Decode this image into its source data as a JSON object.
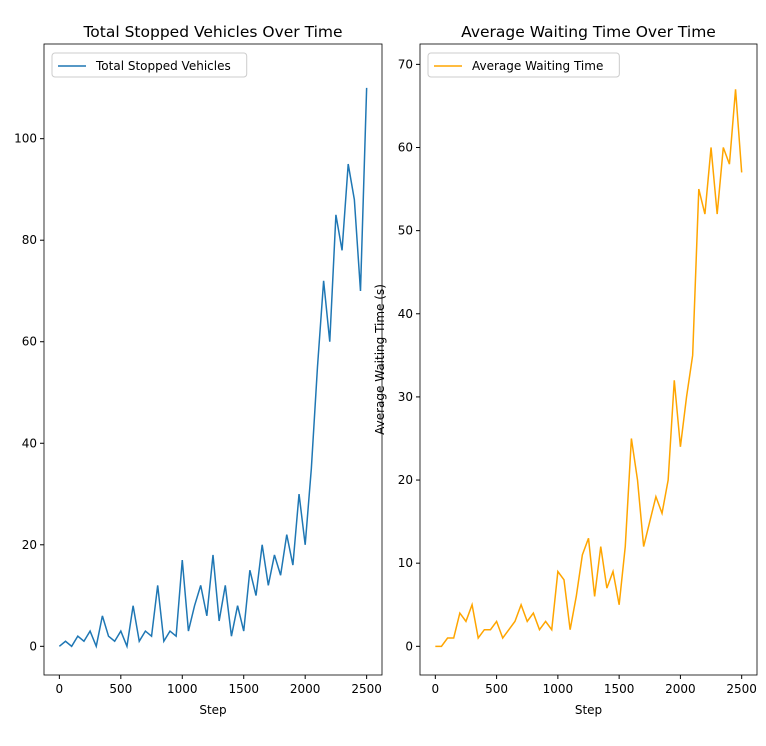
{
  "chart_data": [
    {
      "type": "line",
      "title": "Total Stopped Vehicles Over Time",
      "x_label": "Step",
      "x": [
        0,
        50,
        100,
        150,
        200,
        250,
        300,
        350,
        400,
        450,
        500,
        550,
        600,
        650,
        700,
        750,
        800,
        850,
        900,
        950,
        1000,
        1050,
        1100,
        1150,
        1200,
        1250,
        1300,
        1350,
        1400,
        1450,
        1500,
        1550,
        1600,
        1650,
        1700,
        1750,
        1800,
        1850,
        1900,
        1950,
        2000,
        2050,
        2100,
        2150,
        2200,
        2250,
        2300,
        2350,
        2400,
        2450,
        2500
      ],
      "series": [
        {
          "name": "Total Stopped Vehicles",
          "color": "#1f77b4",
          "values": [
            0,
            1,
            0,
            2,
            1,
            3,
            0,
            6,
            2,
            1,
            3,
            0,
            8,
            1,
            3,
            2,
            12,
            1,
            3,
            2,
            17,
            3,
            8,
            12,
            6,
            18,
            5,
            12,
            2,
            8,
            3,
            15,
            10,
            20,
            12,
            18,
            14,
            22,
            16,
            30,
            20,
            35,
            55,
            72,
            60,
            85,
            78,
            95,
            88,
            70,
            110
          ]
        }
      ],
      "xlim": [
        -125,
        2625
      ],
      "xticks": [
        0,
        500,
        1000,
        1500,
        2000,
        2500
      ],
      "ylim": [
        -5.65,
        118.65
      ],
      "yticks": [
        0,
        20,
        40,
        60,
        80,
        100
      ],
      "legend": "upper left"
    },
    {
      "type": "line",
      "title": "Average Waiting Time Over Time",
      "x_label": "Step",
      "y_label": "Average Waiting Time (s)",
      "x": [
        0,
        50,
        100,
        150,
        200,
        250,
        300,
        350,
        400,
        450,
        500,
        550,
        600,
        650,
        700,
        750,
        800,
        850,
        900,
        950,
        1000,
        1050,
        1100,
        1150,
        1200,
        1250,
        1300,
        1350,
        1400,
        1450,
        1500,
        1550,
        1600,
        1650,
        1700,
        1750,
        1800,
        1850,
        1900,
        1950,
        2000,
        2050,
        2100,
        2150,
        2200,
        2250,
        2300,
        2350,
        2400,
        2450,
        2500
      ],
      "series": [
        {
          "name": "Average Waiting Time",
          "color": "#ffa500",
          "values": [
            0,
            0,
            1,
            1,
            4,
            3,
            5,
            1,
            2,
            2,
            3,
            1,
            2,
            3,
            5,
            3,
            4,
            2,
            3,
            2,
            9,
            8,
            2,
            6,
            11,
            13,
            6,
            12,
            7,
            9,
            5,
            12,
            25,
            20,
            12,
            15,
            18,
            16,
            20,
            32,
            24,
            30,
            35,
            55,
            52,
            60,
            52,
            60,
            58,
            67,
            57
          ]
        }
      ],
      "xlim": [
        -125,
        2625
      ],
      "xticks": [
        0,
        500,
        1000,
        1500,
        2000,
        2500
      ],
      "ylim": [
        -3.45,
        72.45
      ],
      "yticks": [
        0,
        10,
        20,
        30,
        40,
        50,
        60,
        70
      ],
      "legend": "upper left"
    }
  ]
}
